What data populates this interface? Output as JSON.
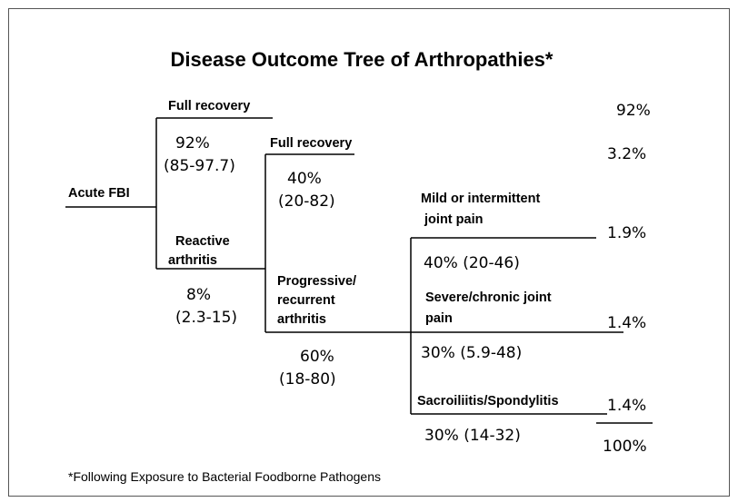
{
  "title": "Disease Outcome Tree of Arthropathies*",
  "root": {
    "label": "Acute FBI"
  },
  "nodes": [
    {
      "label": [
        "Full recovery"
      ],
      "probability": [
        "92%",
        "(85-97.7)"
      ]
    },
    {
      "label": [
        "Reactive",
        "arthritis"
      ],
      "probability": [
        "8%",
        "(2.3-15)"
      ]
    },
    {
      "label": [
        "Full recovery"
      ],
      "probability": [
        "40%",
        "(20-82)"
      ]
    },
    {
      "label": [
        "Progressive/",
        "recurrent",
        "arthritis"
      ],
      "probability": [
        "60%",
        "(18-80)"
      ]
    },
    {
      "label": [
        "Mild or intermittent",
        " joint pain"
      ],
      "probability": [
        "40% (20-46)"
      ]
    },
    {
      "label": [
        "Severe/chronic joint",
        "pain"
      ],
      "probability": [
        "30% (5.9-48)"
      ]
    },
    {
      "label": [
        "Sacroiliitis/Spondylitis"
      ],
      "probability": [
        "30% (14-32)"
      ]
    }
  ],
  "outcomes": [
    "92%",
    "3.2%",
    "1.9%",
    "1.4%",
    "1.4%"
  ],
  "total": "100%",
  "footnote": "*Following Exposure to Bacterial Foodborne Pathogens"
}
